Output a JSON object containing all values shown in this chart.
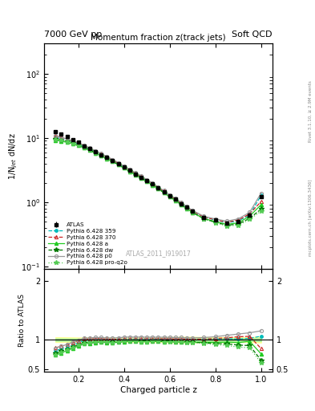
{
  "title_top": "7000 GeV pp",
  "title_right": "Soft QCD",
  "plot_title": "Momentum fraction z(track jets)",
  "xlabel": "Charged particle z",
  "ylabel_main": "1/N$_{jet}$ dN/dz",
  "ylabel_ratio": "Ratio to ATLAS",
  "right_label": "Rivet 3.1.10, ≥ 2.9M events",
  "right_label2": "mcplots.cern.ch [arXiv:1306.3436]",
  "watermark": "ATLAS_2011_I919017",
  "z_values": [
    0.1,
    0.125,
    0.15,
    0.175,
    0.2,
    0.225,
    0.25,
    0.275,
    0.3,
    0.325,
    0.35,
    0.375,
    0.4,
    0.425,
    0.45,
    0.475,
    0.5,
    0.525,
    0.55,
    0.575,
    0.6,
    0.625,
    0.65,
    0.675,
    0.7,
    0.75,
    0.8,
    0.85,
    0.9,
    0.95,
    1.0
  ],
  "atlas_y": [
    12.5,
    11.5,
    10.5,
    9.5,
    8.5,
    7.5,
    6.8,
    6.1,
    5.5,
    5.0,
    4.5,
    4.0,
    3.5,
    3.1,
    2.75,
    2.45,
    2.15,
    1.9,
    1.65,
    1.45,
    1.25,
    1.1,
    0.95,
    0.83,
    0.72,
    0.58,
    0.52,
    0.47,
    0.5,
    0.62,
    1.2
  ],
  "atlas_err": [
    0.5,
    0.45,
    0.4,
    0.35,
    0.3,
    0.28,
    0.25,
    0.22,
    0.2,
    0.18,
    0.16,
    0.14,
    0.12,
    0.11,
    0.1,
    0.09,
    0.08,
    0.07,
    0.065,
    0.06,
    0.055,
    0.05,
    0.045,
    0.04,
    0.035,
    0.025,
    0.022,
    0.02,
    0.02,
    0.025,
    0.06
  ],
  "py359_y": [
    10.2,
    9.7,
    9.2,
    8.65,
    8.05,
    7.4,
    6.75,
    6.1,
    5.5,
    4.97,
    4.47,
    3.98,
    3.52,
    3.12,
    2.77,
    2.46,
    2.16,
    1.91,
    1.66,
    1.46,
    1.26,
    1.1,
    0.955,
    0.83,
    0.72,
    0.585,
    0.525,
    0.478,
    0.505,
    0.635,
    1.27
  ],
  "py370_y": [
    10.8,
    10.2,
    9.6,
    9.0,
    8.3,
    7.6,
    6.88,
    6.22,
    5.6,
    5.05,
    4.52,
    4.03,
    3.56,
    3.16,
    2.8,
    2.49,
    2.19,
    1.93,
    1.68,
    1.47,
    1.27,
    1.11,
    0.965,
    0.835,
    0.725,
    0.585,
    0.53,
    0.485,
    0.525,
    0.655,
    1.02
  ],
  "pya_y": [
    9.2,
    8.9,
    8.55,
    8.1,
    7.6,
    7.0,
    6.38,
    5.8,
    5.25,
    4.75,
    4.27,
    3.82,
    3.38,
    3.0,
    2.67,
    2.37,
    2.08,
    1.84,
    1.6,
    1.4,
    1.21,
    1.06,
    0.915,
    0.793,
    0.688,
    0.554,
    0.496,
    0.45,
    0.475,
    0.603,
    0.91
  ],
  "pydw_y": [
    9.6,
    9.25,
    8.85,
    8.35,
    7.75,
    7.1,
    6.46,
    5.85,
    5.3,
    4.8,
    4.31,
    3.85,
    3.41,
    3.02,
    2.68,
    2.38,
    2.09,
    1.85,
    1.61,
    1.41,
    1.21,
    1.06,
    0.916,
    0.793,
    0.688,
    0.549,
    0.486,
    0.436,
    0.454,
    0.558,
    0.78
  ],
  "pyp0_y": [
    10.7,
    10.2,
    9.65,
    9.1,
    8.4,
    7.7,
    6.99,
    6.33,
    5.7,
    5.14,
    4.63,
    4.13,
    3.65,
    3.24,
    2.87,
    2.56,
    2.24,
    1.98,
    1.72,
    1.51,
    1.3,
    1.14,
    0.985,
    0.855,
    0.742,
    0.601,
    0.546,
    0.505,
    0.548,
    0.693,
    1.38
  ],
  "pyproq2o_y": [
    9.3,
    9.0,
    8.65,
    8.2,
    7.65,
    7.05,
    6.4,
    5.82,
    5.27,
    4.77,
    4.29,
    3.83,
    3.39,
    3.01,
    2.67,
    2.37,
    2.08,
    1.84,
    1.6,
    1.4,
    1.2,
    1.05,
    0.91,
    0.787,
    0.682,
    0.543,
    0.475,
    0.424,
    0.437,
    0.535,
    0.726
  ],
  "atlas_color": "#000000",
  "py359_color": "#00bbbb",
  "py370_color": "#cc2222",
  "pya_color": "#22cc22",
  "pydw_color": "#007700",
  "pyp0_color": "#999999",
  "pyproq2o_color": "#55cc55",
  "band_color_yellow": "#ffff99",
  "band_color_green": "#99ee99",
  "xlim": [
    0.05,
    1.05
  ],
  "ylim_main": [
    0.09,
    300
  ],
  "ylim_ratio": [
    0.45,
    2.2
  ],
  "ratio_yticks": [
    0.5,
    1.0,
    2.0
  ]
}
